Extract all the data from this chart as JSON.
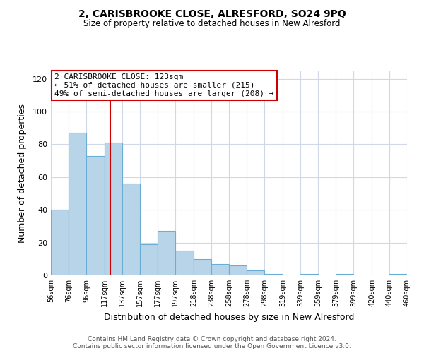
{
  "title": "2, CARISBROOKE CLOSE, ALRESFORD, SO24 9PQ",
  "subtitle": "Size of property relative to detached houses in New Alresford",
  "bar_heights": [
    40,
    87,
    73,
    81,
    56,
    19,
    27,
    15,
    10,
    7,
    6,
    3,
    1,
    0,
    1,
    0,
    1,
    0,
    0,
    1
  ],
  "bin_edges": [
    56,
    76,
    96,
    117,
    137,
    157,
    177,
    197,
    218,
    238,
    258,
    278,
    298,
    319,
    339,
    359,
    379,
    399,
    420,
    440,
    460
  ],
  "tick_labels": [
    "56sqm",
    "76sqm",
    "96sqm",
    "117sqm",
    "137sqm",
    "157sqm",
    "177sqm",
    "197sqm",
    "218sqm",
    "238sqm",
    "258sqm",
    "278sqm",
    "298sqm",
    "319sqm",
    "339sqm",
    "359sqm",
    "379sqm",
    "399sqm",
    "420sqm",
    "440sqm",
    "460sqm"
  ],
  "bar_color": "#b8d4e8",
  "bar_edge_color": "#6aaed6",
  "xlabel": "Distribution of detached houses by size in New Alresford",
  "ylabel": "Number of detached properties",
  "ylim": [
    0,
    125
  ],
  "yticks": [
    0,
    20,
    40,
    60,
    80,
    100,
    120
  ],
  "vline_x": 123,
  "vline_color": "#cc0000",
  "annotation_title": "2 CARISBROOKE CLOSE: 123sqm",
  "annotation_line1": "← 51% of detached houses are smaller (215)",
  "annotation_line2": "49% of semi-detached houses are larger (208) →",
  "annotation_box_color": "#ffffff",
  "annotation_box_edge_color": "#cc0000",
  "footer_line1": "Contains HM Land Registry data © Crown copyright and database right 2024.",
  "footer_line2": "Contains public sector information licensed under the Open Government Licence v3.0.",
  "background_color": "#ffffff",
  "grid_color": "#d0d8e8"
}
